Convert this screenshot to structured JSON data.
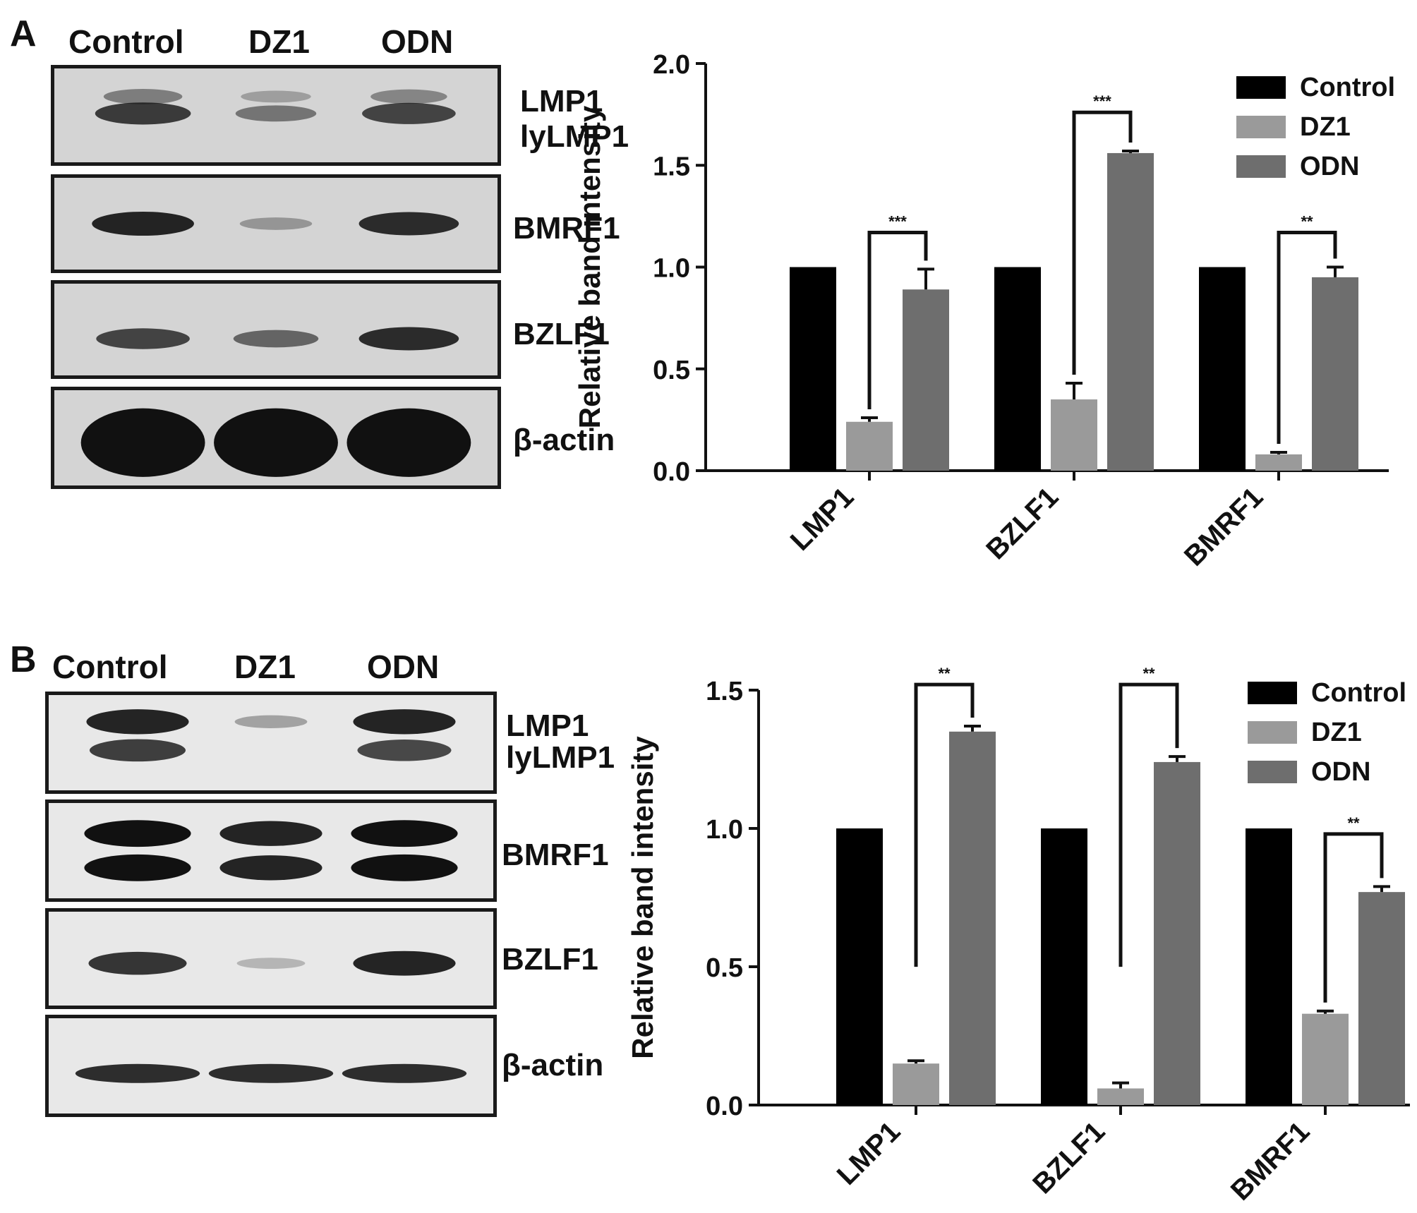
{
  "panel_a": {
    "letter": "A",
    "lanes": [
      "Control",
      "DZ1",
      "ODN"
    ],
    "protein_labels": [
      "LMP1",
      "lyLMP1",
      "BMRF1",
      "BZLF1",
      "β-actin"
    ],
    "band_intensity": {
      "LMP1": [
        0.35,
        0.15,
        0.3
      ],
      "lyLMP1": [
        0.75,
        0.4,
        0.7
      ],
      "BMRF1": [
        0.9,
        0.2,
        0.85
      ],
      "BZLF1": [
        0.7,
        0.5,
        0.85
      ],
      "β-actin": [
        1.0,
        1.0,
        1.0
      ]
    }
  },
  "panel_b": {
    "letter": "B",
    "lanes": [
      "Control",
      "DZ1",
      "ODN"
    ],
    "protein_labels": [
      "LMP1",
      "lyLMP1",
      "BMRF1",
      "BZLF1",
      "β-actin"
    ],
    "band_intensity": {
      "LMP1": [
        0.9,
        0.2,
        0.9
      ],
      "lyLMP1": [
        0.75,
        0.0,
        0.7
      ],
      "BMRF1": [
        1.0,
        0.9,
        1.0
      ],
      "BZLF1": [
        0.8,
        0.1,
        0.9
      ],
      "β-actin": [
        0.85,
        0.85,
        0.85
      ]
    }
  },
  "chart_data": [
    {
      "type": "bar",
      "panel": "A",
      "title": "",
      "xlabel": "",
      "ylabel": "Relative band intensity",
      "ylim": [
        0,
        2.0
      ],
      "yticks": [
        "0.0",
        "0.5",
        "1.0",
        "1.5",
        "2.0"
      ],
      "categories": [
        "LMP1",
        "BZLF1",
        "BMRF1"
      ],
      "series": [
        {
          "name": "Control",
          "color": "#000000",
          "values": [
            1.0,
            1.0,
            1.0
          ],
          "errors": [
            0,
            0,
            0
          ]
        },
        {
          "name": "DZ1",
          "color": "#9a9a9a",
          "values": [
            0.24,
            0.35,
            0.08
          ],
          "errors": [
            0.02,
            0.08,
            0.01
          ]
        },
        {
          "name": "ODN",
          "color": "#6e6e6e",
          "values": [
            0.89,
            1.56,
            0.95
          ],
          "errors": [
            0.1,
            0.01,
            0.05
          ]
        }
      ],
      "significance": [
        {
          "category": "LMP1",
          "label": "***",
          "bracket_y": 1.17
        },
        {
          "category": "BZLF1",
          "label": "***",
          "bracket_y": 1.76
        },
        {
          "category": "BMRF1",
          "label": "**",
          "bracket_y": 1.17
        }
      ],
      "legend": "top-right",
      "grid": false
    },
    {
      "type": "bar",
      "panel": "B",
      "title": "",
      "xlabel": "",
      "ylabel": "Relative band intensity",
      "ylim": [
        0,
        1.5
      ],
      "yticks": [
        "0.0",
        "0.5",
        "1.0",
        "1.5"
      ],
      "categories": [
        "LMP1",
        "BZLF1",
        "BMRF1"
      ],
      "series": [
        {
          "name": "Control",
          "color": "#000000",
          "values": [
            1.0,
            1.0,
            1.0
          ],
          "errors": [
            0,
            0,
            0
          ]
        },
        {
          "name": "DZ1",
          "color": "#9a9a9a",
          "values": [
            0.15,
            0.06,
            0.33
          ],
          "errors": [
            0.01,
            0.02,
            0.01
          ]
        },
        {
          "name": "ODN",
          "color": "#6e6e6e",
          "values": [
            1.35,
            1.24,
            0.77
          ],
          "errors": [
            0.02,
            0.02,
            0.02
          ]
        }
      ],
      "significance": [
        {
          "category": "LMP1",
          "label": "**",
          "bracket_y": 1.52
        },
        {
          "category": "BZLF1",
          "label": "**",
          "bracket_y": 1.52
        },
        {
          "category": "BMRF1",
          "label": "**",
          "bracket_y": 0.98
        }
      ],
      "legend": "top-right",
      "grid": false
    }
  ]
}
